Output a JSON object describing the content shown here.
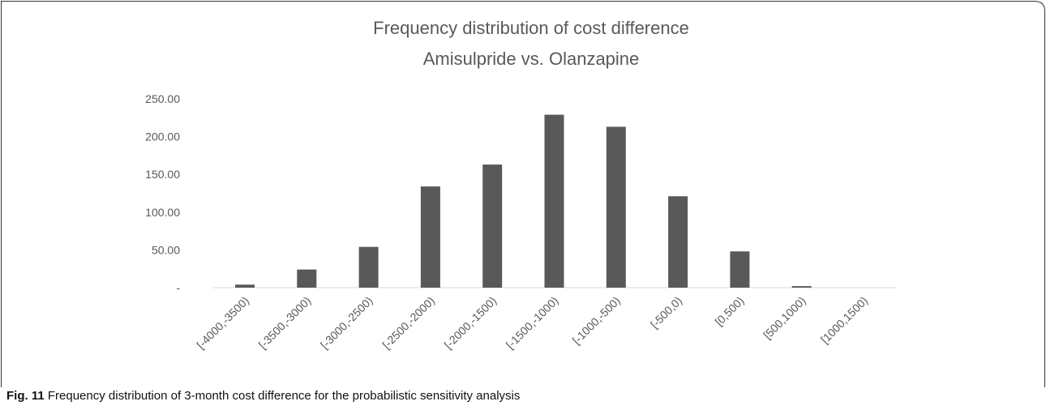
{
  "chart_data": {
    "type": "bar",
    "title": "Frequency distribution of cost difference",
    "subtitle": "Amisulpride vs. Olanzapine",
    "categories": [
      "[-4000,-3500)",
      "[-3500,-3000)",
      "[-3000,-2500)",
      "[-2500,-2000)",
      "[-2000,-1500)",
      "[-1500,-1000)",
      "[-1000,-500)",
      "[-500,0)",
      "[0,500)",
      "[500,1000)",
      "[1000,1500)"
    ],
    "values": [
      4,
      24,
      54,
      134,
      163,
      229,
      213,
      121,
      48,
      2,
      0
    ],
    "color": "#595959",
    "ylim": [
      0,
      250
    ],
    "yticks": [
      {
        "value": 0,
        "label": "-"
      },
      {
        "value": 50,
        "label": "50.00"
      },
      {
        "value": 100,
        "label": "100.00"
      },
      {
        "value": 150,
        "label": "150.00"
      },
      {
        "value": 200,
        "label": "200.00"
      },
      {
        "value": 250,
        "label": "250.00"
      }
    ],
    "grid": false
  },
  "caption": {
    "label": "Fig. 11",
    "text": "Frequency distribution of 3-month cost difference for the probabilistic sensitivity analysis"
  }
}
